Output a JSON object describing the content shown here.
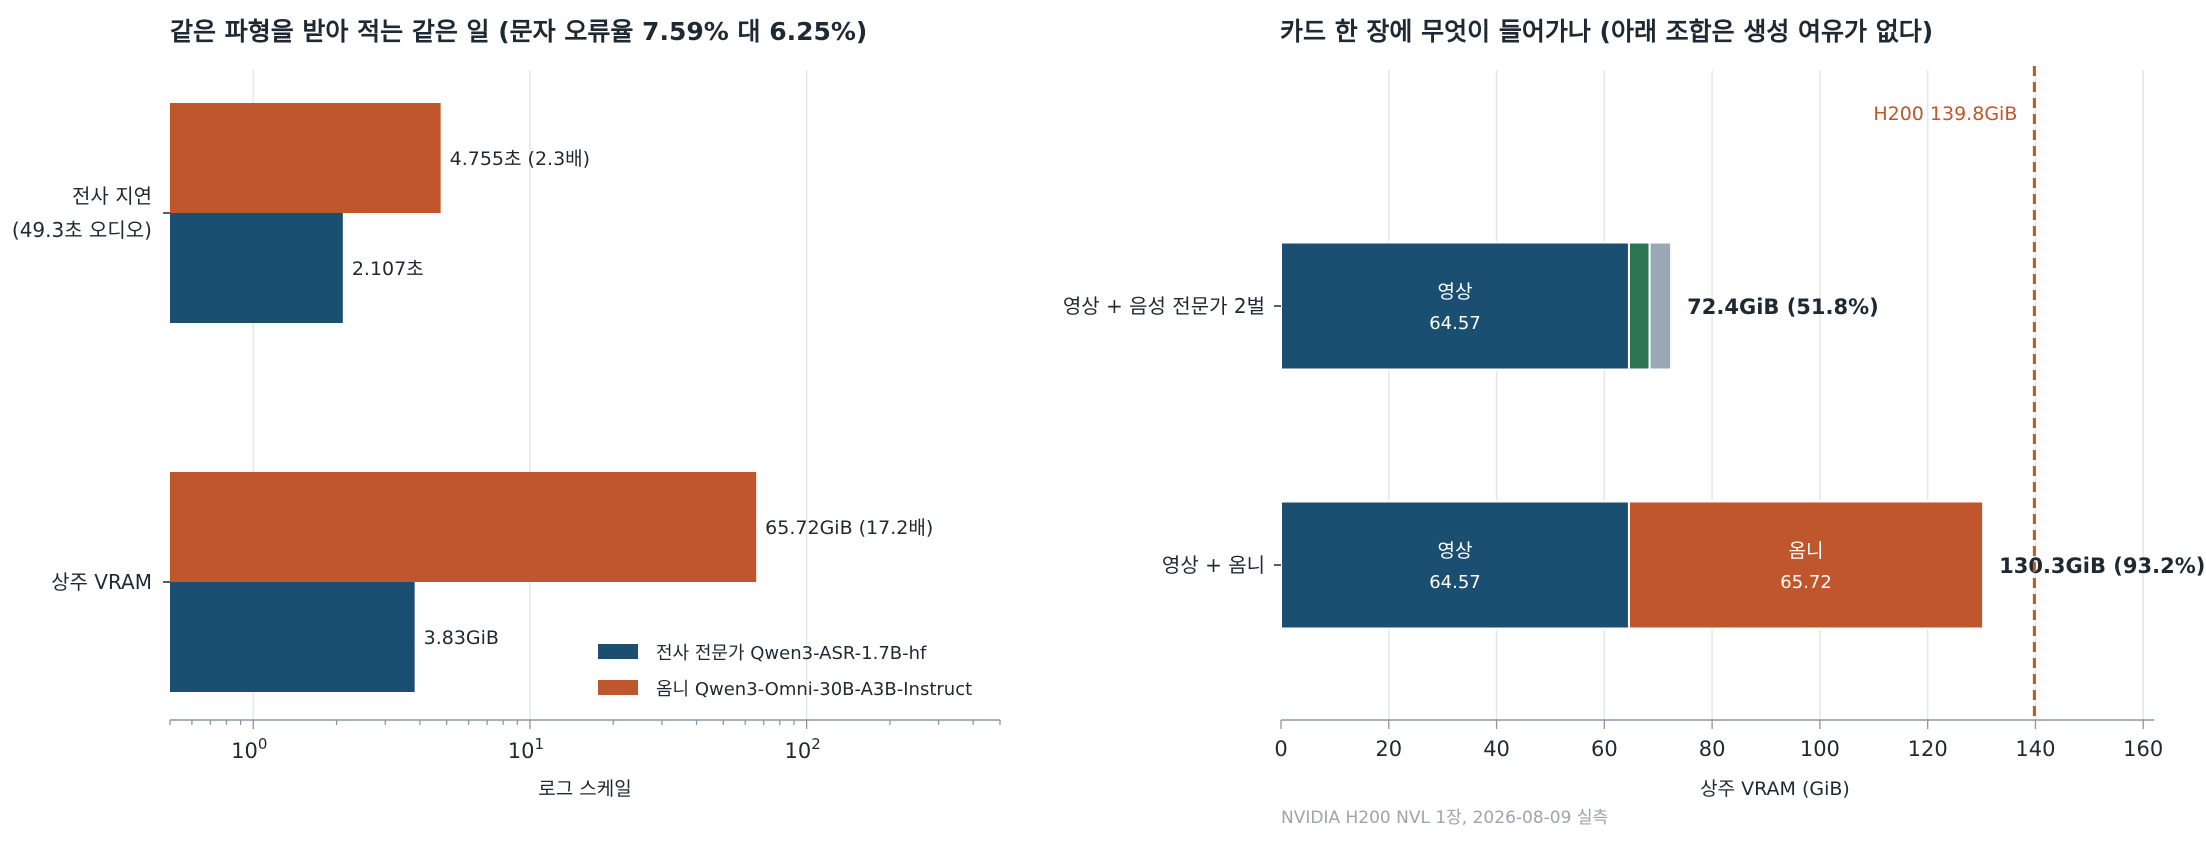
{
  "chart_data": [
    {
      "type": "bar",
      "orientation": "horizontal",
      "title": "같은 파형을 받아 적는 같은 일 (문자 오류율 7.59% 대 6.25%)",
      "xlabel": "로그 스케일",
      "xscale": "log",
      "xlim": [
        0.5,
        500
      ],
      "grid": true,
      "legend_position": "bottom-right",
      "categories": [
        {
          "label_lines": [
            "전사 지연",
            "(49.3초 오디오)"
          ]
        },
        {
          "label_lines": [
            "상주 VRAM"
          ]
        }
      ],
      "ticks": [
        {
          "base": "10",
          "exp": "0"
        },
        {
          "base": "10",
          "exp": "1"
        },
        {
          "base": "10",
          "exp": "2"
        }
      ],
      "series": [
        {
          "name": "전사 전문가  Qwen3-ASR-1.7B-hf",
          "color": "#1b4f72",
          "values": [
            2.107,
            3.83
          ],
          "labels": [
            "2.107초",
            "3.83GiB"
          ]
        },
        {
          "name": "옴니  Qwen3-Omni-30B-A3B-Instruct",
          "color": "#c0562b",
          "values": [
            4.755,
            65.72
          ],
          "labels": [
            "4.755초  (2.3배)",
            "65.72GiB  (17.2배)"
          ]
        }
      ]
    },
    {
      "type": "bar",
      "orientation": "horizontal",
      "stacked": true,
      "title": "카드 한 장에 무엇이 들어가나 (아래 조합은 생성 여유가 없다)",
      "xlabel": "상주 VRAM (GiB)",
      "xlim": [
        0,
        162
      ],
      "grid": true,
      "x_ticks": [
        "0",
        "20",
        "40",
        "60",
        "80",
        "100",
        "120",
        "140",
        "160"
      ],
      "reference_line": {
        "label": "H200 139.8GiB",
        "value": 139.8,
        "color": "#c0562b"
      },
      "note": "NVIDIA H200 NVL 1장, 2026-08-09 실측",
      "rows": [
        {
          "label": "영상 + 음성 전문가 2벌",
          "total_label": "72.4GiB  (51.8%)",
          "segments": [
            {
              "name": "영상",
              "value": 64.57,
              "value_label": "64.57",
              "color": "#1b4f72"
            },
            {
              "value": 3.83,
              "color": "#2e7554"
            },
            {
              "value": 4.0,
              "color": "#9aa8b5"
            }
          ]
        },
        {
          "label": "영상 + 옴니",
          "total_label": "130.3GiB  (93.2%)",
          "segments": [
            {
              "name": "영상",
              "value": 64.57,
              "value_label": "64.57",
              "color": "#1b4f72"
            },
            {
              "name": "옴니",
              "value": 65.72,
              "value_label": "65.72",
              "color": "#c0562b"
            }
          ]
        }
      ]
    }
  ]
}
